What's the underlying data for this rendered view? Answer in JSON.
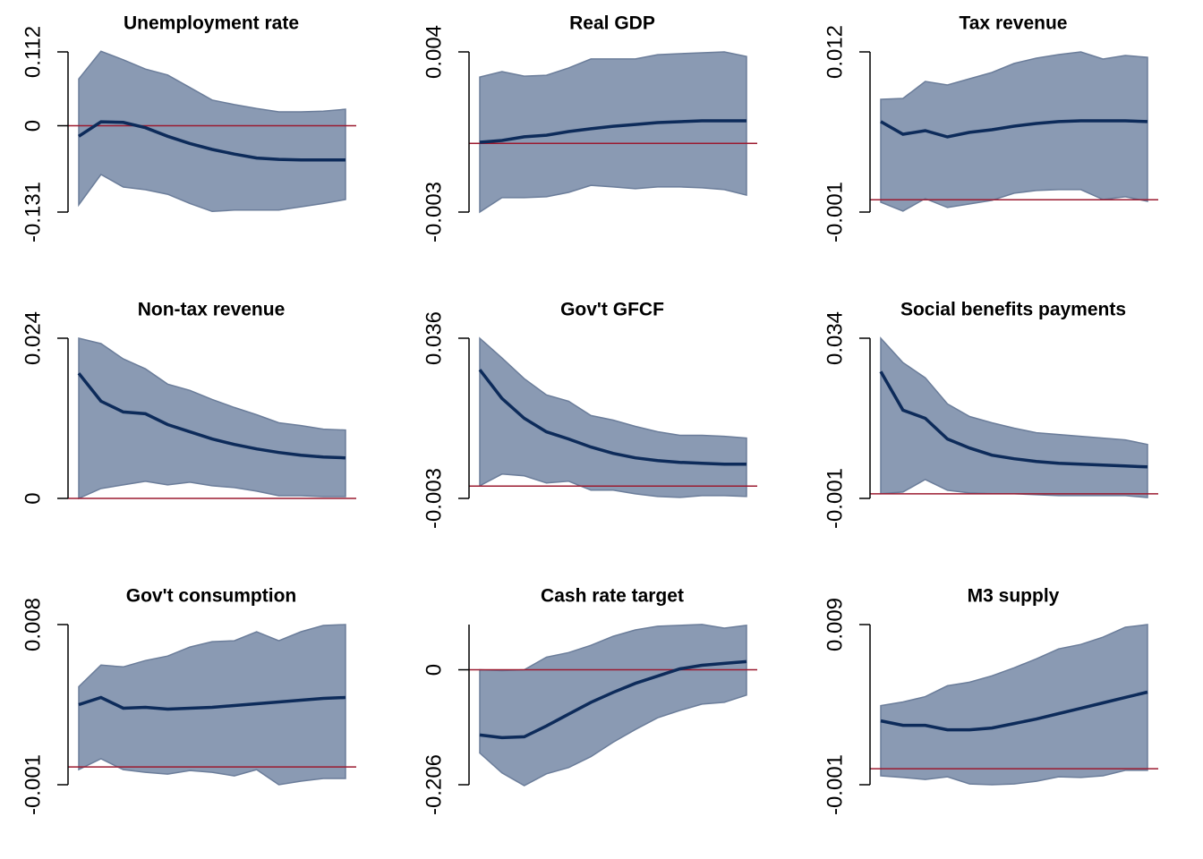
{
  "chart_data": [
    {
      "type": "line",
      "title": "Unemployment rate",
      "categories": [
        null,
        null,
        null,
        null,
        null,
        null,
        null,
        null,
        null,
        null,
        null,
        null,
        null
      ],
      "series": [
        {
          "color": "#0d2b5a",
          "values": [
            -0.016,
            0.006,
            0.005,
            -0.003,
            -0.016,
            -0.027,
            -0.036,
            -0.043,
            -0.049,
            -0.051,
            -0.052,
            -0.052,
            -0.052
          ]
        }
      ],
      "band": {
        "color": "#8a9ab3",
        "lower": [
          -0.12,
          -0.074,
          -0.093,
          -0.097,
          -0.104,
          -0.118,
          -0.13,
          -0.128,
          -0.128,
          -0.128,
          -0.123,
          -0.118,
          -0.112
        ],
        "upper": [
          0.071,
          0.113,
          0.1,
          0.086,
          0.077,
          0.058,
          0.039,
          0.032,
          0.026,
          0.021,
          0.021,
          0.022,
          0.025
        ]
      },
      "zero_line_color": "#9b1b30",
      "ylim": [
        -0.131,
        0.112
      ],
      "yticks": [
        -0.131,
        0,
        0.112
      ]
    },
    {
      "type": "line",
      "title": "Real GDP",
      "categories": [
        null,
        null,
        null,
        null,
        null,
        null,
        null,
        null,
        null,
        null,
        null,
        null,
        null
      ],
      "series": [
        {
          "color": "#0d2b5a",
          "values": [
            5e-05,
            0.00013,
            0.00029,
            0.00036,
            0.00052,
            0.00064,
            0.00075,
            0.00083,
            0.00091,
            0.00095,
            0.00099,
            0.00099,
            0.00099
          ]
        }
      ],
      "band": {
        "color": "#8a9ab3",
        "lower": [
          -0.003,
          -0.00237,
          -0.00237,
          -0.00233,
          -0.00214,
          -0.00183,
          -0.0019,
          -0.00198,
          -0.0019,
          -0.0019,
          -0.00194,
          -0.00202,
          -0.00226
        ],
        "upper": [
          0.0029,
          0.00314,
          0.00294,
          0.00298,
          0.0033,
          0.00369,
          0.00369,
          0.00369,
          0.00388,
          0.00392,
          0.00396,
          0.004,
          0.0038
        ]
      },
      "zero_line_color": "#9b1b30",
      "ylim": [
        -0.003,
        0.004
      ],
      "yticks": [
        -0.003,
        0.004
      ]
    },
    {
      "type": "line",
      "title": "Tax revenue",
      "categories": [
        null,
        null,
        null,
        null,
        null,
        null,
        null,
        null,
        null,
        null,
        null,
        null,
        null
      ],
      "series": [
        {
          "color": "#0d2b5a",
          "values": [
            0.00634,
            0.00532,
            0.00561,
            0.0051,
            0.00547,
            0.00568,
            0.00597,
            0.00619,
            0.00634,
            0.00641,
            0.00641,
            0.00641,
            0.00634
          ]
        }
      ],
      "band": {
        "color": "#8a9ab3",
        "lower": [
          -0.0002,
          -0.00092,
          0.0001,
          -0.00063,
          -0.00034,
          -5e-05,
          0.00053,
          0.00075,
          0.00082,
          0.00082,
          2e-05,
          0.00024,
          -0.00012
        ],
        "upper": [
          0.00815,
          0.00822,
          0.0096,
          0.00931,
          0.00982,
          0.01033,
          0.01106,
          0.01149,
          0.01178,
          0.012,
          0.01142,
          0.01171,
          0.01156
        ]
      },
      "zero_line_color": "#9b1b30",
      "ylim": [
        -0.001,
        0.012
      ],
      "yticks": [
        -0.001,
        0.012
      ]
    },
    {
      "type": "line",
      "title": "Non-tax revenue",
      "categories": [
        null,
        null,
        null,
        null,
        null,
        null,
        null,
        null,
        null,
        null,
        null,
        null,
        null
      ],
      "series": [
        {
          "color": "#0d2b5a",
          "values": [
            0.01874,
            0.01456,
            0.01295,
            0.01268,
            0.01106,
            0.00998,
            0.0089,
            0.00809,
            0.00742,
            0.00688,
            0.00647,
            0.0062,
            0.00607
          ]
        }
      ],
      "band": {
        "color": "#8a9ab3",
        "lower": [
          0,
          0.00148,
          0.00202,
          0.00256,
          0.00202,
          0.00243,
          0.00189,
          0.00162,
          0.00108,
          0.0004,
          0.0004,
          0.00027,
          0.00027
        ],
        "upper": [
          0.024,
          0.02319,
          0.0209,
          0.01942,
          0.01712,
          0.01618,
          0.01483,
          0.01362,
          0.01254,
          0.01133,
          0.01092,
          0.01038,
          0.01025
        ]
      },
      "zero_line_color": "#9b1b30",
      "ylim": [
        0,
        0.024
      ],
      "yticks": [
        0,
        0.024
      ]
    },
    {
      "type": "line",
      "title": "Gov't GFCF",
      "categories": [
        null,
        null,
        null,
        null,
        null,
        null,
        null,
        null,
        null,
        null,
        null,
        null,
        null
      ],
      "series": [
        {
          "color": "#0d2b5a",
          "values": [
            0.02833,
            0.02133,
            0.01651,
            0.01322,
            0.01147,
            0.0095,
            0.00797,
            0.00687,
            0.00622,
            0.00578,
            0.00556,
            0.00534,
            0.00534
          ]
        }
      ],
      "band": {
        "color": "#8a9ab3",
        "lower": [
          8e-05,
          0.00293,
          0.00249,
          0.00074,
          0.00118,
          -0.001,
          -0.001,
          -0.00189,
          -0.00254,
          -0.00276,
          -0.00233,
          -0.00233,
          -0.00254
        ],
        "upper": [
          0.036,
          0.03118,
          0.02615,
          0.02221,
          0.02067,
          0.01717,
          0.01607,
          0.01454,
          0.01323,
          0.01235,
          0.01235,
          0.01213,
          0.01169
        ]
      },
      "zero_line_color": "#9b1b30",
      "ylim": [
        -0.003,
        0.036
      ],
      "yticks": [
        -0.003,
        0.036
      ]
    },
    {
      "type": "line",
      "title": "Social benefits payments",
      "categories": [
        null,
        null,
        null,
        null,
        null,
        null,
        null,
        null,
        null,
        null,
        null,
        null,
        null
      ],
      "series": [
        {
          "color": "#0d2b5a",
          "values": [
            0.02673,
            0.01827,
            0.0165,
            0.01198,
            0.01001,
            0.00844,
            0.00766,
            0.00707,
            0.00667,
            0.00648,
            0.00628,
            0.00608,
            0.00589
          ]
        }
      ],
      "band": {
        "color": "#8a9ab3",
        "lower": [
          1e-05,
          0.00038,
          0.00313,
          0.00078,
          0.00019,
          1e-05,
          1e-05,
          -0.0002,
          -0.0004,
          -0.0004,
          -0.0004,
          -0.0004,
          -0.0008
        ],
        "upper": [
          0.034,
          0.02869,
          0.02535,
          0.01965,
          0.0169,
          0.01552,
          0.01434,
          0.01336,
          0.01296,
          0.01257,
          0.01218,
          0.01179,
          0.0108
        ]
      },
      "zero_line_color": "#9b1b30",
      "ylim": [
        -0.001,
        0.034
      ],
      "yticks": [
        -0.001,
        0.034
      ]
    },
    {
      "type": "line",
      "title": "Gov't consumption",
      "categories": [
        null,
        null,
        null,
        null,
        null,
        null,
        null,
        null,
        null,
        null,
        null,
        null,
        null
      ],
      "series": [
        {
          "color": "#0d2b5a",
          "values": [
            0.0035,
            0.0039,
            0.0033,
            0.00335,
            0.00325,
            0.0033,
            0.00335,
            0.00345,
            0.00355,
            0.00365,
            0.00375,
            0.00385,
            0.0039
          ]
        }
      ],
      "band": {
        "color": "#8a9ab3",
        "lower": [
          -0.00015,
          0.00046,
          -0.00015,
          -0.0003,
          -0.0004,
          -0.0002,
          -0.0003,
          -0.0005,
          -0.00015,
          -0.001,
          -0.0008,
          -0.00065,
          -0.00065
        ],
        "upper": [
          0.00451,
          0.00572,
          0.00562,
          0.00598,
          0.00623,
          0.00674,
          0.00704,
          0.00709,
          0.0076,
          0.00709,
          0.0076,
          0.00795,
          0.008
        ]
      },
      "zero_line_color": "#9b1b30",
      "ylim": [
        -0.001,
        0.008
      ],
      "yticks": [
        -0.001,
        0.008
      ]
    },
    {
      "type": "line",
      "title": "Cash rate target",
      "categories": [
        null,
        null,
        null,
        null,
        null,
        null,
        null,
        null,
        null,
        null,
        null,
        null,
        null
      ],
      "series": [
        {
          "color": "#0d2b5a",
          "values": [
            -0.1168,
            -0.1217,
            -0.12,
            -0.1006,
            -0.0795,
            -0.0584,
            -0.0406,
            -0.0243,
            -0.0114,
            0.0016,
            0.0081,
            0.0114,
            0.0146
          ]
        }
      ],
      "band": {
        "color": "#8a9ab3",
        "lower": [
          -0.1492,
          -0.1849,
          -0.2076,
          -0.1865,
          -0.1752,
          -0.1557,
          -0.1298,
          -0.1071,
          -0.086,
          -0.073,
          -0.0616,
          -0.0584,
          -0.0454
        ],
        "upper": [
          0,
          -0.0016,
          0,
          0.0227,
          0.0308,
          0.0438,
          0.06,
          0.0714,
          0.0779,
          0.0795,
          0.0811,
          0.0746,
          0.0795
        ]
      },
      "zero_line_color": "#9b1b30",
      "ylim": [
        -0.206,
        0.081
      ],
      "yticks": [
        -0.206,
        0
      ]
    },
    {
      "type": "line",
      "title": "M3 supply",
      "categories": [
        null,
        null,
        null,
        null,
        null,
        null,
        null,
        null,
        null,
        null,
        null,
        null,
        null
      ],
      "series": [
        {
          "color": "#0d2b5a",
          "values": [
            0.00299,
            0.00271,
            0.00271,
            0.00243,
            0.00243,
            0.00254,
            0.00282,
            0.0031,
            0.00344,
            0.00377,
            0.00411,
            0.00445,
            0.00478
          ]
        }
      ],
      "band": {
        "color": "#8a9ab3",
        "lower": [
          -0.00044,
          -0.00055,
          -0.00067,
          -0.0005,
          -0.00095,
          -0.001,
          -0.00095,
          -0.00078,
          -0.0005,
          -0.00055,
          -0.00044,
          -0.0001,
          -0.0001
        ],
        "upper": [
          0.00394,
          0.00417,
          0.0045,
          0.00518,
          0.0054,
          0.0058,
          0.0063,
          0.00686,
          0.00748,
          0.00776,
          0.00821,
          0.00883,
          0.009
        ]
      },
      "zero_line_color": "#9b1b30",
      "ylim": [
        -0.001,
        0.009
      ],
      "yticks": [
        -0.001,
        0.009
      ]
    }
  ]
}
